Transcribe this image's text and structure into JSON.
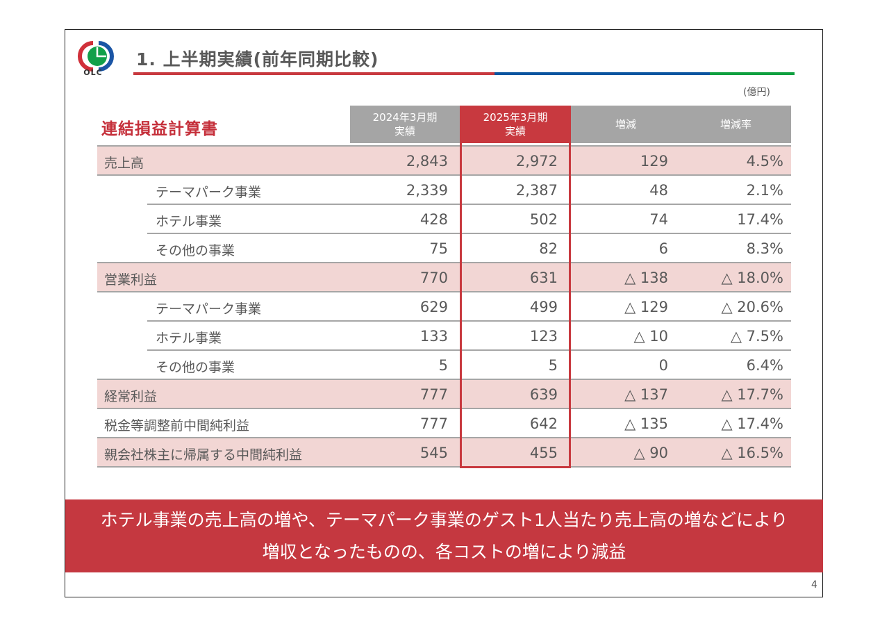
{
  "header": {
    "logo_text": "OLC",
    "title": "1. 上半期実績(前年同期比較)",
    "title_bar_colors": [
      "#c8393f",
      "#0a55a0",
      "#10a040"
    ]
  },
  "unit": "(億円)",
  "section_title": "連結損益計算書",
  "table": {
    "columns": [
      {
        "line1": "2024年3月期",
        "line2": "実績"
      },
      {
        "line1": "2025年3月期",
        "line2": "実績"
      },
      {
        "line1": "増減",
        "line2": ""
      },
      {
        "line1": "増減率",
        "line2": ""
      }
    ],
    "rows": [
      {
        "label": "売上高",
        "indent": false,
        "highlight": true,
        "v2024": "2,843",
        "v2025": "2,972",
        "diff": "129",
        "rate": "4.5%"
      },
      {
        "label": "テーマパーク事業",
        "indent": true,
        "highlight": false,
        "v2024": "2,339",
        "v2025": "2,387",
        "diff": "48",
        "rate": "2.1%"
      },
      {
        "label": "ホテル事業",
        "indent": true,
        "highlight": false,
        "v2024": "428",
        "v2025": "502",
        "diff": "74",
        "rate": "17.4%"
      },
      {
        "label": "その他の事業",
        "indent": true,
        "highlight": false,
        "v2024": "75",
        "v2025": "82",
        "diff": "6",
        "rate": "8.3%"
      },
      {
        "label": "営業利益",
        "indent": false,
        "highlight": true,
        "v2024": "770",
        "v2025": "631",
        "diff": "△ 138",
        "rate": "△ 18.0%"
      },
      {
        "label": "テーマパーク事業",
        "indent": true,
        "highlight": false,
        "v2024": "629",
        "v2025": "499",
        "diff": "△ 129",
        "rate": "△ 20.6%"
      },
      {
        "label": "ホテル事業",
        "indent": true,
        "highlight": false,
        "v2024": "133",
        "v2025": "123",
        "diff": "△ 10",
        "rate": "△ 7.5%"
      },
      {
        "label": "その他の事業",
        "indent": true,
        "highlight": false,
        "v2024": "5",
        "v2025": "5",
        "diff": "0",
        "rate": "6.4%"
      },
      {
        "label": "経常利益",
        "indent": false,
        "highlight": true,
        "v2024": "777",
        "v2025": "639",
        "diff": "△ 137",
        "rate": "△ 17.7%"
      },
      {
        "label": "税金等調整前中間純利益",
        "indent": false,
        "highlight": false,
        "v2024": "777",
        "v2025": "642",
        "diff": "△ 135",
        "rate": "△ 17.4%"
      },
      {
        "label": "親会社株主に帰属する中間純利益",
        "indent": false,
        "highlight": true,
        "v2024": "545",
        "v2025": "455",
        "diff": "△ 90",
        "rate": "△ 16.5%"
      }
    ]
  },
  "banner": {
    "line1": "ホテル事業の売上高の増や、テーマパーク事業のゲスト1人当たり売上高の増などにより",
    "line2": "増収となったものの、各コストの増により減益"
  },
  "page_number": "4",
  "colors": {
    "accent_red": "#c8393f",
    "header_gray": "#a5a5a5",
    "highlight_pink": "#f2d6d4",
    "text_gray": "#595959"
  }
}
